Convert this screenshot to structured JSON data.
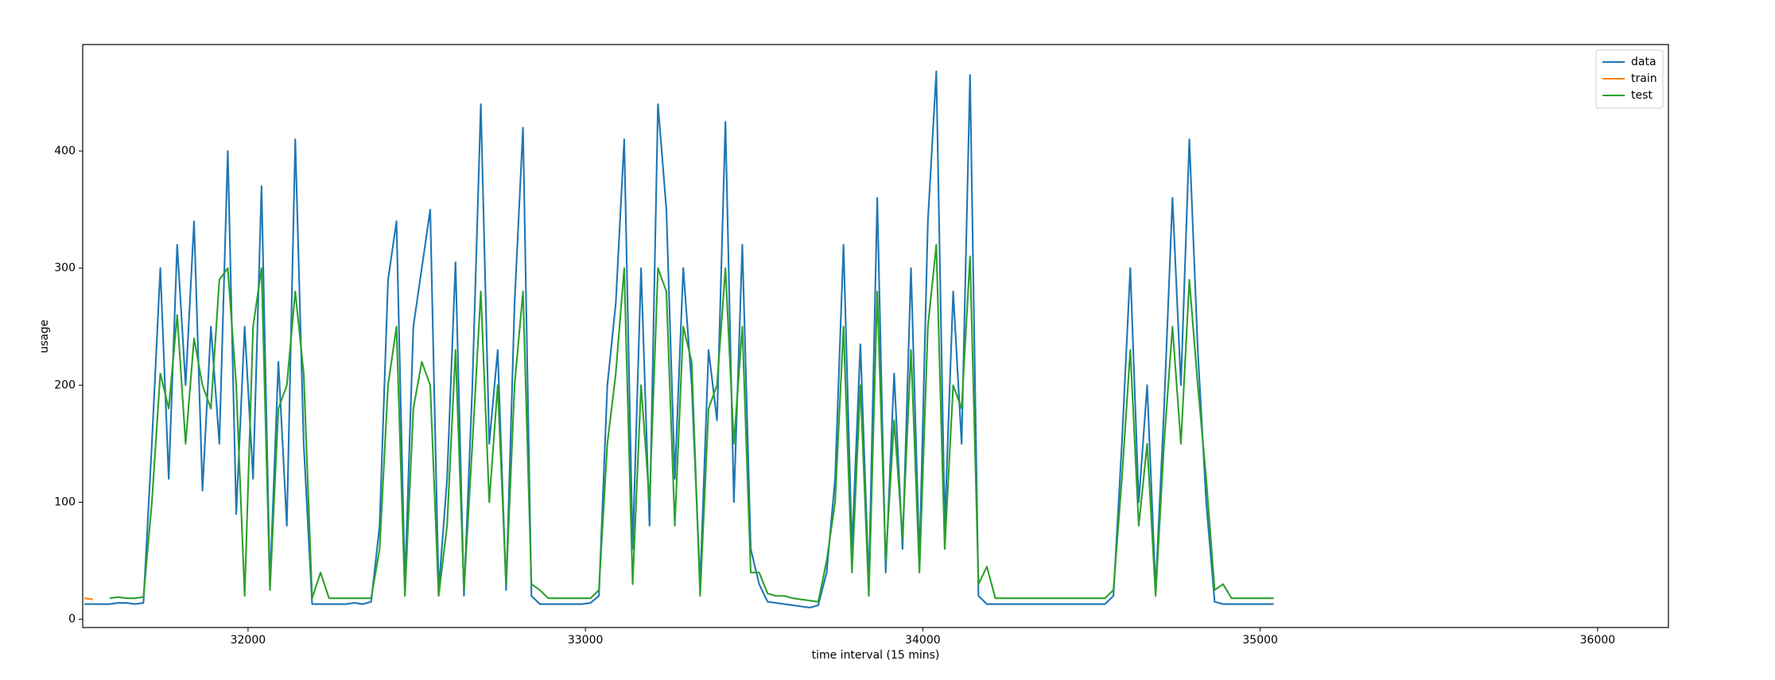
{
  "chart_data": {
    "type": "line",
    "xlabel": "time interval (15 mins)",
    "ylabel": "usage",
    "x": [
      31515,
      31540,
      31565,
      31590,
      31615,
      31640,
      31665,
      31690,
      31715,
      31740,
      31765,
      31790,
      31815,
      31840,
      31865,
      31890,
      31915,
      31940,
      31965,
      31990,
      32015,
      32040,
      32065,
      32090,
      32115,
      32140,
      32165,
      32190,
      32215,
      32240,
      32265,
      32290,
      32315,
      32340,
      32365,
      32390,
      32415,
      32440,
      32465,
      32490,
      32515,
      32540,
      32565,
      32590,
      32615,
      32640,
      32665,
      32690,
      32715,
      32740,
      32765,
      32790,
      32815,
      32840,
      32865,
      32890,
      32915,
      32940,
      32965,
      32990,
      33015,
      33040,
      33065,
      33090,
      33115,
      33140,
      33165,
      33190,
      33215,
      33240,
      33265,
      33290,
      33315,
      33340,
      33365,
      33390,
      33415,
      33440,
      33465,
      33490,
      33515,
      33540,
      33565,
      33590,
      33615,
      33640,
      33665,
      33690,
      33715,
      33740,
      33765,
      33790,
      33815,
      33840,
      33865,
      33890,
      33915,
      33940,
      33965,
      33990,
      34015,
      34040,
      34065,
      34090,
      34115,
      34140,
      34165,
      34190,
      34215,
      34240,
      34265,
      34290,
      34315,
      34340,
      34365,
      34390,
      34415,
      34440,
      34465,
      34490,
      34515,
      34540,
      34565,
      34590,
      34615,
      34640,
      34665,
      34690,
      34715,
      34740,
      34765,
      34790,
      34815,
      34840,
      34865,
      34890,
      34915,
      34940,
      34965,
      34990,
      35015,
      35040
    ],
    "series": [
      {
        "name": "data",
        "color": "#1f77b4",
        "values": [
          13,
          13,
          13,
          13,
          14,
          14,
          13,
          14,
          150,
          300,
          120,
          320,
          200,
          340,
          110,
          250,
          150,
          400,
          90,
          250,
          120,
          370,
          30,
          220,
          80,
          410,
          150,
          13,
          13,
          13,
          13,
          13,
          14,
          13,
          15,
          80,
          290,
          340,
          30,
          250,
          300,
          350,
          25,
          120,
          305,
          20,
          200,
          440,
          150,
          230,
          25,
          270,
          420,
          20,
          13,
          13,
          13,
          13,
          13,
          13,
          14,
          20,
          200,
          270,
          410,
          60,
          300,
          80,
          440,
          350,
          120,
          300,
          200,
          30,
          230,
          170,
          425,
          100,
          320,
          60,
          30,
          15,
          14,
          13,
          12,
          11,
          10,
          12,
          40,
          120,
          320,
          60,
          235,
          30,
          360,
          40,
          210,
          60,
          300,
          50,
          340,
          468,
          80,
          280,
          150,
          465,
          20,
          13,
          13,
          13,
          13,
          13,
          13,
          13,
          13,
          13,
          13,
          13,
          13,
          13,
          13,
          13,
          20,
          150,
          300,
          100,
          200,
          25,
          180,
          360,
          200,
          410,
          230,
          100,
          15,
          13,
          13,
          13,
          13,
          13,
          13,
          13
        ]
      },
      {
        "name": "train",
        "color": "#ff7f0e",
        "x": [
          31515,
          31540
        ],
        "values": [
          18,
          17
        ]
      },
      {
        "name": "test",
        "color": "#2ca02c",
        "values": [
          null,
          null,
          null,
          18,
          19,
          18,
          18,
          19,
          100,
          210,
          180,
          260,
          150,
          240,
          200,
          180,
          290,
          300,
          200,
          20,
          250,
          300,
          25,
          180,
          200,
          280,
          210,
          18,
          40,
          18,
          18,
          18,
          18,
          18,
          18,
          60,
          200,
          250,
          20,
          180,
          220,
          200,
          20,
          80,
          230,
          25,
          150,
          280,
          100,
          200,
          30,
          200,
          280,
          30,
          25,
          18,
          18,
          18,
          18,
          18,
          18,
          25,
          150,
          210,
          300,
          30,
          200,
          100,
          300,
          280,
          80,
          250,
          220,
          20,
          180,
          200,
          300,
          150,
          250,
          40,
          40,
          22,
          20,
          20,
          18,
          17,
          16,
          15,
          50,
          100,
          250,
          40,
          200,
          20,
          280,
          50,
          170,
          70,
          230,
          40,
          250,
          320,
          60,
          200,
          180,
          310,
          30,
          45,
          18,
          18,
          18,
          18,
          18,
          18,
          18,
          18,
          18,
          18,
          18,
          18,
          18,
          18,
          25,
          120,
          230,
          80,
          150,
          20,
          150,
          250,
          150,
          290,
          200,
          120,
          25,
          30,
          18,
          18,
          18,
          18,
          18,
          18
        ]
      }
    ],
    "xlim": [
      31510,
      36210
    ],
    "xticks": [
      32000,
      33000,
      34000,
      35000,
      36000
    ],
    "ylim": [
      -7,
      491
    ],
    "yticks": [
      0,
      100,
      200,
      300,
      400
    ],
    "legend": "upper right"
  }
}
